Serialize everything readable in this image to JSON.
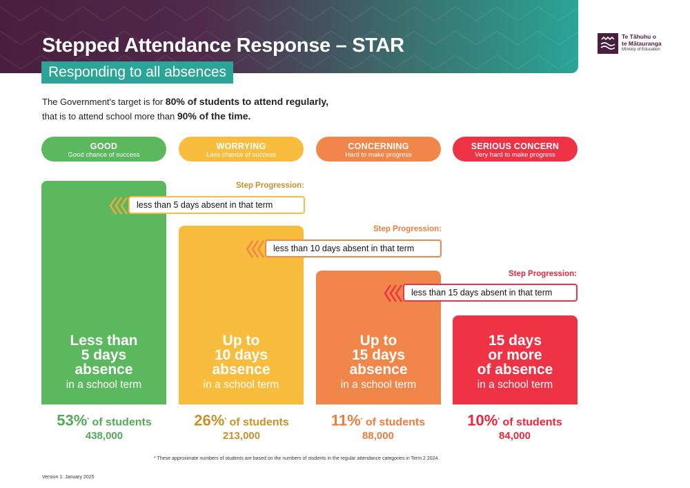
{
  "header": {
    "title_main": "Stepped Attendance Response – ",
    "title_strong": "STAR",
    "subtitle": "Responding to all absences"
  },
  "logo": {
    "line1": "Te Tāhuhu o",
    "line2": "te Mātauranga",
    "line3": "Ministry of Education"
  },
  "intro": {
    "p1": "The Government's target is for ",
    "b1": "80% of students to attend regularly,",
    "p2": "that is to attend school more than ",
    "b2": "90%",
    "p3": " of the time."
  },
  "colors": {
    "good": "#5cb85f",
    "worrying": "#f9bd3d",
    "concerning": "#f0864a",
    "serious": "#ee3347",
    "good_dark": "#54a958",
    "worrying_dark": "#c8912a",
    "concerning_dark": "#ea7d3f",
    "serious_dark": "#e8283c"
  },
  "chart_data": {
    "type": "bar",
    "categories": [
      "GOOD",
      "WORRYING",
      "CONCERNING",
      "SERIOUS CONCERN"
    ],
    "category_subtitles": [
      "Good chance of success",
      "Less chance of success",
      "Hard to make progress",
      "Very hard to make progress"
    ],
    "bar_labels": [
      {
        "big": [
          "Less than",
          "5 days",
          "absence"
        ],
        "small": "in a school term"
      },
      {
        "big": [
          "Up to",
          "10 days",
          "absence"
        ],
        "small": "in a school term"
      },
      {
        "big": [
          "Up to",
          "15 days",
          "absence"
        ],
        "small": "in a school term"
      },
      {
        "big": [
          "15 days",
          "or more",
          "of absence"
        ],
        "small": "in a school term"
      }
    ],
    "values": [
      53,
      26,
      11,
      10
    ],
    "percent_labels": [
      "53%",
      "26%",
      "11%",
      "10%"
    ],
    "percent_suffix": " of students",
    "student_counts": [
      "438,000",
      "213,000",
      "88,000",
      "84,000"
    ],
    "step_progressions": [
      {
        "label": "Step Progression:",
        "text": "less than 5 days absent in that term"
      },
      {
        "label": "Step Progression:",
        "text": "less than 10 days absent in that term"
      },
      {
        "label": "Step Progression:",
        "text": "less than 15 days absent in that term"
      }
    ],
    "footnote": "* These approximate numbers of students are based on the numbers of students in the regular attendance categories in Term 2 2024."
  },
  "version": "Version 1: January 2025"
}
